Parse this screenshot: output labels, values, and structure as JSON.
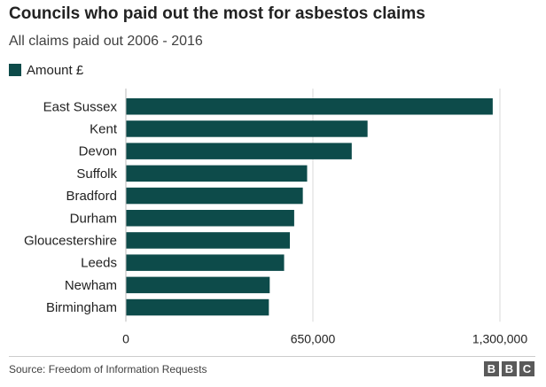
{
  "chart_data": {
    "type": "bar",
    "orientation": "horizontal",
    "title": "Councils who paid out the most for asbestos claims",
    "subtitle": "All claims paid out 2006 - 2016",
    "categories": [
      "East Sussex",
      "Kent",
      "Devon",
      "Suffolk",
      "Bradford",
      "Durham",
      "Gloucestershire",
      "Leeds",
      "Newham",
      "Birmingham"
    ],
    "series": [
      {
        "name": "Amount £",
        "color": "#0d4b4a",
        "values": [
          1275000,
          840000,
          785000,
          630000,
          615000,
          585000,
          570000,
          550000,
          500000,
          497000
        ]
      }
    ],
    "xlim": [
      0,
      1300000
    ],
    "xticks": [
      0,
      650000,
      1300000
    ],
    "xtick_labels": [
      "0",
      "650,000",
      "1,300,000"
    ],
    "grid": "vertical",
    "legend_position": "top-left"
  },
  "footer": {
    "source": "Source: Freedom of Information Requests",
    "logo_letters": [
      "B",
      "B",
      "C"
    ]
  }
}
